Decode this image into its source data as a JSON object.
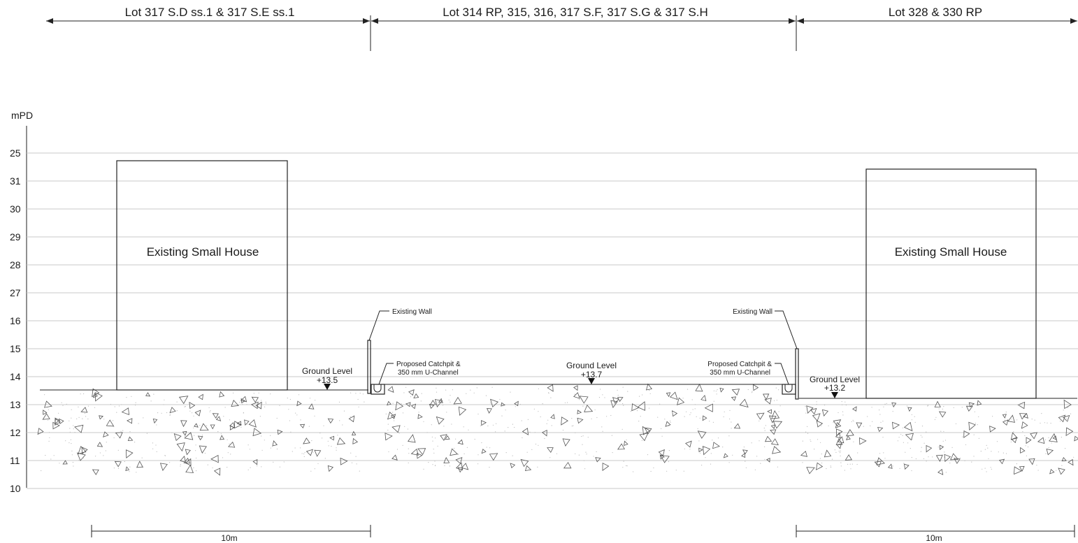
{
  "lots": [
    {
      "label": "Lot 317 S.D ss.1 & 317 S.E ss.1"
    },
    {
      "label": "Lot 314 RP, 315, 316, 317 S.F, 317 S.G & 317 S.H"
    },
    {
      "label": "Lot 328 & 330 RP"
    }
  ],
  "axis": {
    "unit": "mPD",
    "ticks": [
      "25",
      "31",
      "30",
      "29",
      "28",
      "27",
      "16",
      "15",
      "14",
      "13",
      "12",
      "11",
      "10"
    ]
  },
  "houses": {
    "left": "Existing Small House",
    "right": "Existing Small House"
  },
  "ground_levels": {
    "left": {
      "label": "Ground Level",
      "value": "+13.5"
    },
    "middle": {
      "label": "Ground Level",
      "value": "+13.7"
    },
    "right": {
      "label": "Ground Level",
      "value": "+13.2"
    }
  },
  "annotations": {
    "wall_left": "Existing Wall",
    "wall_right": "Existing Wall",
    "catchpit_left_line1": "Proposed Catchpit &",
    "catchpit_left_line2": "350 mm U-Channel",
    "catchpit_right_line1": "Proposed Catchpit &",
    "catchpit_right_line2": "350 mm U-Channel"
  },
  "scale_bars": {
    "left": "10m",
    "right": "10m"
  },
  "colors": {
    "line": "#222222",
    "grid": "#c8c8c8",
    "hatch": "#555555"
  }
}
